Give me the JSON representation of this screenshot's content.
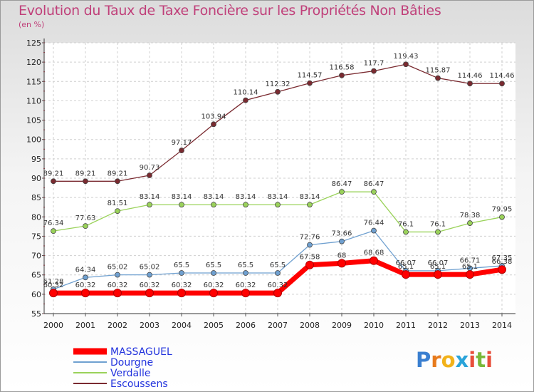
{
  "header": {
    "title": "Evolution du Taux de Taxe Foncière sur les Propriétés Non Bâties",
    "unit": "(en %)"
  },
  "logo": {
    "letters": [
      "P",
      "r",
      "o",
      "x",
      "i",
      "t",
      "i"
    ],
    "colors": [
      "#3a7fd0",
      "#e77b1d",
      "#f2b21a",
      "#2aa4da",
      "#e84e3a",
      "#7ab83a",
      "#e84e3a"
    ]
  },
  "chart_data": {
    "type": "line",
    "x": [
      "2000",
      "2001",
      "2002",
      "2003",
      "2004",
      "2005",
      "2006",
      "2007",
      "2008",
      "2009",
      "2010",
      "2011",
      "2012",
      "2013",
      "2014"
    ],
    "ylim": [
      55,
      125
    ],
    "yticks": [
      55,
      60,
      65,
      70,
      75,
      80,
      85,
      90,
      95,
      100,
      105,
      110,
      115,
      120,
      125
    ],
    "grid": true,
    "legend_position": "bottom-left",
    "series": [
      {
        "name": "MASSAGUEL",
        "color": "#ff0000",
        "values": [
          60.32,
          60.32,
          60.32,
          60.32,
          60.32,
          60.32,
          60.32,
          60.32,
          67.58,
          68,
          68.68,
          65.1,
          65.1,
          65.1,
          66.38
        ],
        "labels": [
          "60.32",
          "60.32",
          "60.32",
          "60.32",
          "60.32",
          "60.32",
          "60.32",
          "60.32",
          "67.58",
          "68",
          "68.68",
          "65.1",
          "65.1",
          "65.1",
          "66.38"
        ]
      },
      {
        "name": "Dourgne",
        "color": "#6fa0d0",
        "values": [
          61.28,
          64.34,
          65.02,
          65.02,
          65.5,
          65.5,
          65.5,
          65.5,
          72.76,
          73.66,
          76.44,
          66.07,
          66.07,
          66.71,
          67.35
        ],
        "labels": [
          "61.28",
          "64.34",
          "65.02",
          "65.02",
          "65.5",
          "65.5",
          "65.5",
          "65.5",
          "72.76",
          "73.66",
          "76.44",
          "66.07",
          "66.07",
          "66.71",
          "67.35"
        ]
      },
      {
        "name": "Verdalle",
        "color": "#9ad25a",
        "values": [
          76.34,
          77.63,
          81.51,
          83.14,
          83.14,
          83.14,
          83.14,
          83.14,
          83.14,
          86.47,
          86.47,
          76.1,
          76.1,
          78.38,
          79.95
        ],
        "labels": [
          "76.34",
          "77.63",
          "81.51",
          "83.14",
          "83.14",
          "83.14",
          "83.14",
          "83.14",
          "83.14",
          "86.47",
          "86.47",
          "76.1",
          "76.1",
          "78.38",
          "79.95"
        ]
      },
      {
        "name": "Escoussens",
        "color": "#7a2a30",
        "values": [
          89.21,
          89.21,
          89.21,
          90.73,
          97.17,
          103.94,
          110.14,
          112.32,
          114.57,
          116.58,
          117.7,
          119.43,
          115.87,
          114.46,
          114.46
        ],
        "labels": [
          "89.21",
          "89.21",
          "89.21",
          "90.73",
          "97.17",
          "103.94",
          "110.14",
          "112.32",
          "114.57",
          "116.58",
          "117.7",
          "119.43",
          "115.87",
          "114.46",
          "114.46"
        ]
      }
    ]
  }
}
